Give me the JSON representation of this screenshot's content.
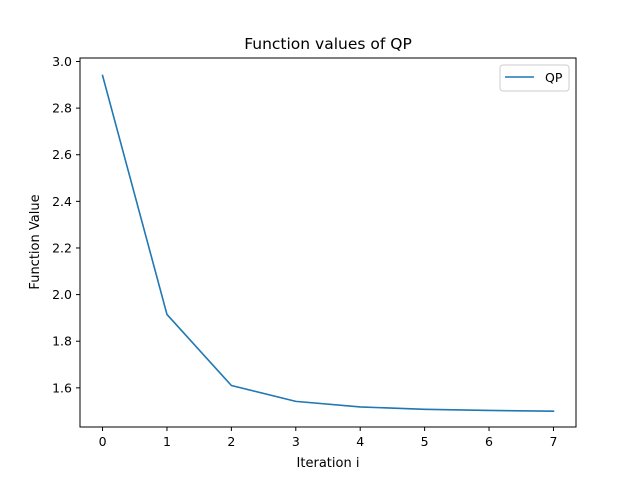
{
  "chart_data": {
    "type": "line",
    "title": "Function values of QP",
    "xlabel": "Iteration i",
    "ylabel": "Function Value",
    "xlim": [
      -0.35,
      7.35
    ],
    "ylim": [
      1.432,
      3.015
    ],
    "xticks": [
      0,
      1,
      2,
      3,
      4,
      5,
      6,
      7
    ],
    "yticks": [
      1.6,
      1.8,
      2.0,
      2.2,
      2.4,
      2.6,
      2.8,
      3.0
    ],
    "ytick_labels": [
      "1.6",
      "1.8",
      "2.0",
      "2.2",
      "2.4",
      "2.6",
      "2.8",
      "3.0"
    ],
    "grid": false,
    "legend": "top-right",
    "series": [
      {
        "name": "QP",
        "color": "#1f77b4",
        "x": [
          0,
          1,
          2,
          3,
          4,
          5,
          6,
          7
        ],
        "y": [
          2.94,
          1.915,
          1.61,
          1.542,
          1.518,
          1.508,
          1.503,
          1.5
        ]
      }
    ]
  }
}
